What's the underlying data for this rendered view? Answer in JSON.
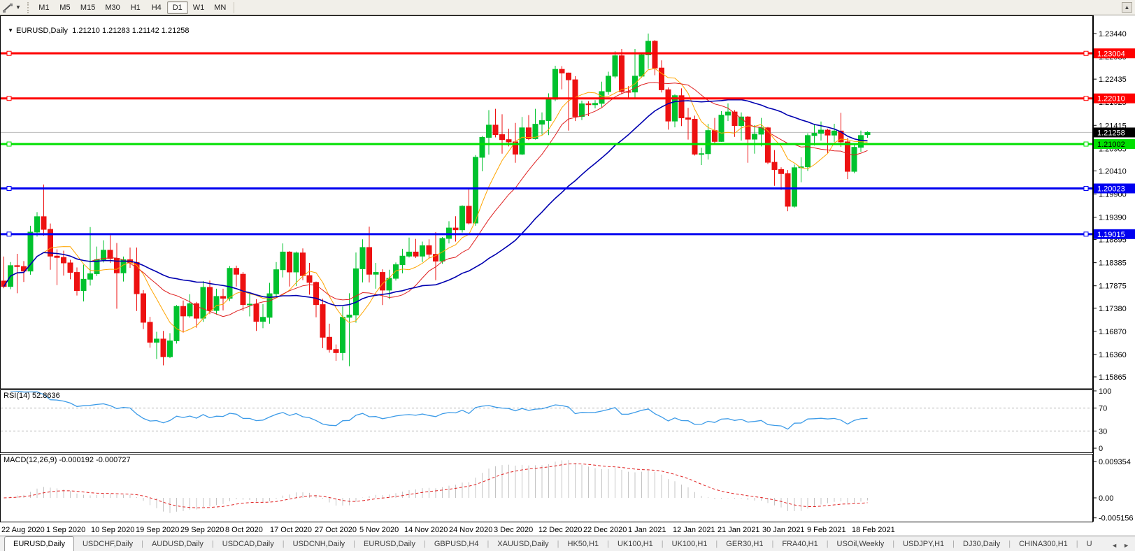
{
  "toolbar": {
    "tool_icon": "crosshair-line-tool",
    "timeframes": [
      "M1",
      "M5",
      "M15",
      "M30",
      "H1",
      "H4",
      "D1",
      "W1",
      "MN"
    ],
    "active_timeframe": "D1"
  },
  "chart": {
    "title": {
      "symbol_period": "EURUSD,Daily",
      "ohlc_text": "1.21210 1.21283 1.21142 1.21258"
    },
    "price_axis_ticks": [
      "1.23440",
      "1.22930",
      "1.22435",
      "1.21925",
      "1.21415",
      "1.20905",
      "1.20410",
      "1.19900",
      "1.19390",
      "1.18895",
      "1.18385",
      "1.17875",
      "1.17380",
      "1.16870",
      "1.16360",
      "1.15865"
    ],
    "date_axis_labels": [
      "22 Aug 2020",
      "1 Sep 2020",
      "10 Sep 2020",
      "19 Sep 2020",
      "29 Sep 2020",
      "8 Oct 2020",
      "17 Oct 2020",
      "27 Oct 2020",
      "5 Nov 2020",
      "14 Nov 2020",
      "24 Nov 2020",
      "3 Dec 2020",
      "12 Dec 2020",
      "22 Dec 2020",
      "1 Jan 2021",
      "12 Jan 2021",
      "21 Jan 2021",
      "30 Jan 2021",
      "9 Feb 2021",
      "18 Feb 2021"
    ],
    "current_price": {
      "value": "1.21258",
      "price": 1.21258,
      "tag_bg": "#000000",
      "tag_text": "#ffffff",
      "line_color": "#bbbbbb"
    },
    "hlines": [
      {
        "label": "1.23004",
        "price": 1.23004,
        "color": "#ff0000",
        "text_color": "#ffffff"
      },
      {
        "label": "1.22010",
        "price": 1.2201,
        "color": "#ff0000",
        "text_color": "#ffffff"
      },
      {
        "label": "1.21002",
        "price": 1.21002,
        "color": "#00e000",
        "text_color": "#000000"
      },
      {
        "label": "1.20023",
        "price": 1.20023,
        "color": "#0000f0",
        "text_color": "#ffffff"
      },
      {
        "label": "1.19015",
        "price": 1.19015,
        "color": "#0000f0",
        "text_color": "#ffffff"
      }
    ],
    "colors": {
      "up": "#00c22e",
      "down": "#ed1111",
      "ma_fast": "#ffa500",
      "ma_mid": "#df2020",
      "ma_slow": "#0000b0"
    },
    "ma_periods": {
      "fast": 7,
      "mid": 14,
      "slow": 30
    }
  },
  "rsi": {
    "label": "RSI(14) 52.8636",
    "period": 14,
    "axis_ticks": [
      "100",
      "70",
      "30",
      "0"
    ],
    "levels": [
      70,
      30
    ],
    "line_color": "#3c9be8"
  },
  "macd": {
    "label": "MACD(12,26,9) -0.000192 -0.000727",
    "axis_ticks": [
      "0.009354",
      "0.00",
      "-0.005156"
    ],
    "axis_values": [
      0.009354,
      0.0,
      -0.005156
    ],
    "hist_color": "#c4c4c4",
    "signal_color": "#e02020"
  },
  "tabs": {
    "items": [
      "EURUSD,Daily",
      "USDCHF,Daily",
      "AUDUSD,Daily",
      "USDCAD,Daily",
      "USDCNH,Daily",
      "EURUSD,Daily",
      "GBPUSD,H4",
      "XAUUSD,Daily",
      "HK50,H1",
      "UK100,H1",
      "UK100,H1",
      "GER30,H1",
      "FRA40,H1",
      "USOil,Weekly",
      "USDJPY,H1",
      "DJ30,Daily",
      "CHINA300,H1",
      "U"
    ],
    "active_index": 0,
    "scroll_left": "◄",
    "scroll_right": "►"
  },
  "chart_data": {
    "type": "candlestick",
    "symbol": "EURUSD",
    "timeframe": "Daily",
    "x_labels": [
      "22 Aug 2020",
      "1 Sep 2020",
      "10 Sep 2020",
      "19 Sep 2020",
      "29 Sep 2020",
      "8 Oct 2020",
      "17 Oct 2020",
      "27 Oct 2020",
      "5 Nov 2020",
      "14 Nov 2020",
      "24 Nov 2020",
      "3 Dec 2020",
      "12 Dec 2020",
      "22 Dec 2020",
      "1 Jan 2021",
      "12 Jan 2021",
      "21 Jan 2021",
      "30 Jan 2021",
      "9 Feb 2021",
      "18 Feb 2021"
    ],
    "y_range": [
      1.15865,
      1.2344
    ],
    "ohlc": [
      [
        1.1798,
        1.1852,
        1.1782,
        1.1786
      ],
      [
        1.1786,
        1.184,
        1.178,
        1.1832
      ],
      [
        1.1832,
        1.1858,
        1.1771,
        1.183
      ],
      [
        1.183,
        1.1842,
        1.1796,
        1.182
      ],
      [
        1.182,
        1.192,
        1.1812,
        1.1906
      ],
      [
        1.1906,
        1.195,
        1.1896,
        1.194
      ],
      [
        1.194,
        1.2011,
        1.1898,
        1.1912
      ],
      [
        1.1912,
        1.1925,
        1.1823,
        1.1853
      ],
      [
        1.1853,
        1.1868,
        1.1789,
        1.185
      ],
      [
        1.185,
        1.1865,
        1.181,
        1.1838
      ],
      [
        1.1838,
        1.1845,
        1.1802,
        1.1817
      ],
      [
        1.1817,
        1.1828,
        1.1766,
        1.1777
      ],
      [
        1.1777,
        1.1834,
        1.1753,
        1.1802
      ],
      [
        1.1802,
        1.1917,
        1.1788,
        1.1814
      ],
      [
        1.1814,
        1.1874,
        1.1809,
        1.1845
      ],
      [
        1.1845,
        1.1888,
        1.1839,
        1.1866
      ],
      [
        1.1866,
        1.1899,
        1.1838,
        1.1848
      ],
      [
        1.1848,
        1.1882,
        1.1737,
        1.1816
      ],
      [
        1.1816,
        1.1852,
        1.1797,
        1.1845
      ],
      [
        1.1845,
        1.1872,
        1.1827,
        1.1839
      ],
      [
        1.1839,
        1.1872,
        1.1732,
        1.177
      ],
      [
        1.177,
        1.1778,
        1.1692,
        1.1707
      ],
      [
        1.1707,
        1.1719,
        1.1651,
        1.1663
      ],
      [
        1.1663,
        1.1686,
        1.1626,
        1.167
      ],
      [
        1.167,
        1.1688,
        1.1612,
        1.1631
      ],
      [
        1.1631,
        1.1683,
        1.1628,
        1.1666
      ],
      [
        1.1666,
        1.1745,
        1.166,
        1.1742
      ],
      [
        1.1742,
        1.1755,
        1.1684,
        1.1721
      ],
      [
        1.1721,
        1.1769,
        1.1717,
        1.1748
      ],
      [
        1.1748,
        1.1752,
        1.1695,
        1.1716
      ],
      [
        1.1716,
        1.1798,
        1.1708,
        1.1784
      ],
      [
        1.1784,
        1.1799,
        1.1725,
        1.1733
      ],
      [
        1.1733,
        1.1781,
        1.1724,
        1.1764
      ],
      [
        1.1764,
        1.1781,
        1.1733,
        1.176
      ],
      [
        1.176,
        1.1831,
        1.1754,
        1.1826
      ],
      [
        1.1826,
        1.1832,
        1.1786,
        1.1813
      ],
      [
        1.1813,
        1.1818,
        1.1732,
        1.1746
      ],
      [
        1.1746,
        1.1771,
        1.172,
        1.1747
      ],
      [
        1.1747,
        1.1758,
        1.1688,
        1.1709
      ],
      [
        1.1709,
        1.1747,
        1.1694,
        1.1718
      ],
      [
        1.1718,
        1.1794,
        1.1704,
        1.177
      ],
      [
        1.177,
        1.184,
        1.1761,
        1.1823
      ],
      [
        1.1823,
        1.1881,
        1.1806,
        1.1862
      ],
      [
        1.1862,
        1.1864,
        1.1786,
        1.1818
      ],
      [
        1.1818,
        1.1863,
        1.1787,
        1.186
      ],
      [
        1.186,
        1.187,
        1.18,
        1.181
      ],
      [
        1.181,
        1.1838,
        1.1768,
        1.1795
      ],
      [
        1.1795,
        1.1797,
        1.1718,
        1.1746
      ],
      [
        1.1746,
        1.1759,
        1.165,
        1.1674
      ],
      [
        1.1674,
        1.1704,
        1.164,
        1.1647
      ],
      [
        1.1647,
        1.1658,
        1.1622,
        1.164
      ],
      [
        1.164,
        1.1742,
        1.1623,
        1.1718
      ],
      [
        1.1718,
        1.1771,
        1.161,
        1.1723
      ],
      [
        1.1723,
        1.1861,
        1.1706,
        1.1825
      ],
      [
        1.1825,
        1.189,
        1.1795,
        1.1872
      ],
      [
        1.1872,
        1.1918,
        1.1795,
        1.1813
      ],
      [
        1.1813,
        1.1838,
        1.1781,
        1.1817
      ],
      [
        1.1817,
        1.1824,
        1.1745,
        1.1778
      ],
      [
        1.1778,
        1.1823,
        1.1758,
        1.1804
      ],
      [
        1.1804,
        1.1839,
        1.1799,
        1.1834
      ],
      [
        1.1834,
        1.1869,
        1.1815,
        1.1853
      ],
      [
        1.1853,
        1.1894,
        1.185,
        1.1862
      ],
      [
        1.1862,
        1.1891,
        1.1849,
        1.1853
      ],
      [
        1.1853,
        1.1885,
        1.184,
        1.1876
      ],
      [
        1.1876,
        1.189,
        1.1848,
        1.1857
      ],
      [
        1.1857,
        1.1906,
        1.18,
        1.1842
      ],
      [
        1.1842,
        1.1895,
        1.1836,
        1.1892
      ],
      [
        1.1892,
        1.193,
        1.1881,
        1.1915
      ],
      [
        1.1915,
        1.1941,
        1.1885,
        1.1911
      ],
      [
        1.1911,
        1.1965,
        1.1905,
        1.1963
      ],
      [
        1.1963,
        1.2003,
        1.1923,
        1.1926
      ],
      [
        1.1926,
        1.2076,
        1.192,
        1.2071
      ],
      [
        1.2071,
        1.2118,
        1.204,
        1.2115
      ],
      [
        1.2115,
        1.2175,
        1.2077,
        1.2142
      ],
      [
        1.2142,
        1.2178,
        1.2115,
        1.2121
      ],
      [
        1.2121,
        1.2166,
        1.2079,
        1.211
      ],
      [
        1.211,
        1.2134,
        1.2095,
        1.2105
      ],
      [
        1.2105,
        1.2147,
        1.2059,
        1.2078
      ],
      [
        1.2078,
        1.216,
        1.2076,
        1.2136
      ],
      [
        1.2136,
        1.2164,
        1.2109,
        1.2112
      ],
      [
        1.2112,
        1.2178,
        1.211,
        1.2144
      ],
      [
        1.2144,
        1.217,
        1.2121,
        1.2152
      ],
      [
        1.2152,
        1.2212,
        1.212,
        1.2199
      ],
      [
        1.2199,
        1.2273,
        1.2195,
        1.2265
      ],
      [
        1.2265,
        1.2272,
        1.2221,
        1.2257
      ],
      [
        1.2257,
        1.2258,
        1.213,
        1.2242
      ],
      [
        1.2242,
        1.225,
        1.2151,
        1.2161
      ],
      [
        1.2161,
        1.2196,
        1.2153,
        1.2189
      ],
      [
        1.2189,
        1.2195,
        1.2162,
        1.2187
      ],
      [
        1.2187,
        1.2197,
        1.2179,
        1.219
      ],
      [
        1.219,
        1.2238,
        1.2181,
        1.2216
      ],
      [
        1.2216,
        1.226,
        1.2209,
        1.225
      ],
      [
        1.225,
        1.2305,
        1.2245,
        1.2295
      ],
      [
        1.2295,
        1.231,
        1.221,
        1.2216
      ],
      [
        1.2216,
        1.2228,
        1.2202,
        1.2215
      ],
      [
        1.2215,
        1.231,
        1.22,
        1.225
      ],
      [
        1.225,
        1.23,
        1.2247,
        1.2297
      ],
      [
        1.2297,
        1.2344,
        1.2266,
        1.2327
      ],
      [
        1.2327,
        1.233,
        1.2252,
        1.2268
      ],
      [
        1.2268,
        1.2285,
        1.2214,
        1.222
      ],
      [
        1.222,
        1.2225,
        1.2132,
        1.2151
      ],
      [
        1.2151,
        1.221,
        1.2137,
        1.2207
      ],
      [
        1.2207,
        1.2223,
        1.214,
        1.2158
      ],
      [
        1.2158,
        1.218,
        1.211,
        1.2155
      ],
      [
        1.2155,
        1.2163,
        1.2075,
        1.2078
      ],
      [
        1.2078,
        1.2092,
        1.2054,
        1.2079
      ],
      [
        1.2079,
        1.2145,
        1.2066,
        1.213
      ],
      [
        1.213,
        1.2158,
        1.2101,
        1.2106
      ],
      [
        1.2106,
        1.2173,
        1.2105,
        1.2164
      ],
      [
        1.2164,
        1.219,
        1.2151,
        1.2171
      ],
      [
        1.2171,
        1.2175,
        1.2116,
        1.2141
      ],
      [
        1.2141,
        1.217,
        1.2108,
        1.216
      ],
      [
        1.216,
        1.2162,
        1.2059,
        1.2111
      ],
      [
        1.2111,
        1.2142,
        1.2079,
        1.2122
      ],
      [
        1.2122,
        1.2158,
        1.2095,
        1.2136
      ],
      [
        1.2136,
        1.2138,
        1.2056,
        1.206
      ],
      [
        1.206,
        1.2087,
        1.2008,
        1.2044
      ],
      [
        1.2044,
        1.2049,
        1.1999,
        1.2035
      ],
      [
        1.2035,
        1.2043,
        1.1952,
        1.1963
      ],
      [
        1.1963,
        1.2055,
        1.196,
        1.2048
      ],
      [
        1.2048,
        1.2071,
        1.2016,
        1.205
      ],
      [
        1.205,
        1.2124,
        1.2041,
        1.2119
      ],
      [
        1.2119,
        1.2145,
        1.2097,
        1.2124
      ],
      [
        1.2124,
        1.215,
        1.2108,
        1.2131
      ],
      [
        1.2131,
        1.2134,
        1.208,
        1.212
      ],
      [
        1.212,
        1.2145,
        1.2105,
        1.2129
      ],
      [
        1.2129,
        1.2169,
        1.2094,
        1.2105
      ],
      [
        1.2105,
        1.2114,
        1.2023,
        1.204
      ],
      [
        1.204,
        1.2101,
        1.2036,
        1.2093
      ],
      [
        1.2093,
        1.213,
        1.2083,
        1.2119
      ],
      [
        1.2121,
        1.21283,
        1.21142,
        1.21258
      ]
    ],
    "indicators": [
      {
        "name": "RSI",
        "period": 14,
        "last_value": 52.8636
      },
      {
        "name": "MACD",
        "params": [
          12,
          26,
          9
        ],
        "last_main": -0.000192,
        "last_signal": -0.000727
      },
      {
        "name": "MA",
        "periods": [
          7,
          14,
          30
        ]
      }
    ]
  }
}
